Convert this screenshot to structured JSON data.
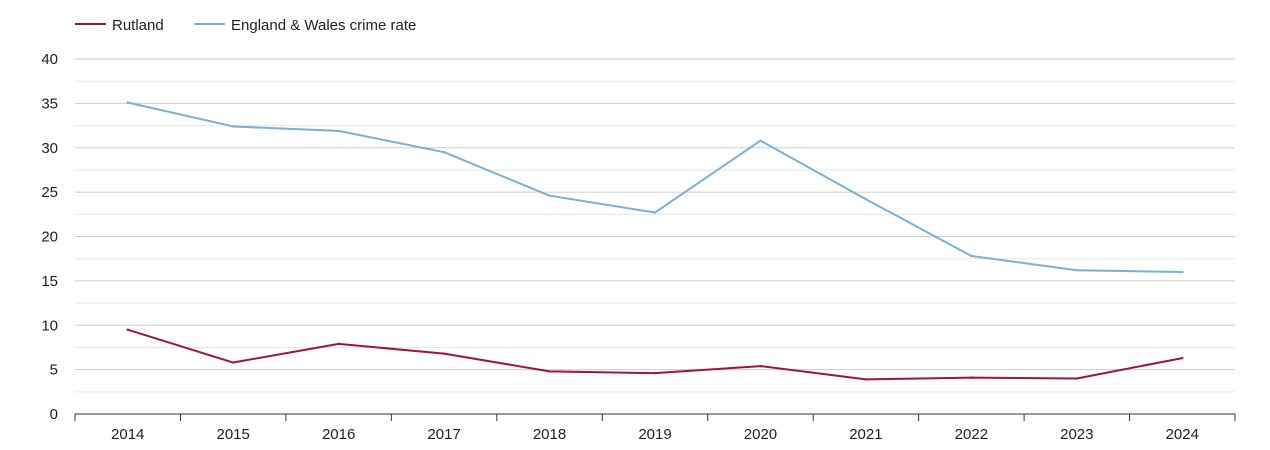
{
  "chart_data": {
    "type": "line",
    "title": "",
    "xlabel": "",
    "ylabel": "",
    "x": [
      "2014",
      "2015",
      "2016",
      "2017",
      "2018",
      "2019",
      "2020",
      "2021",
      "2022",
      "2023",
      "2024"
    ],
    "ylim": [
      0,
      40
    ],
    "yticks": [
      "0",
      "5",
      "10",
      "15",
      "20",
      "25",
      "30",
      "35",
      "40"
    ],
    "grid": true,
    "legend_position": "top-left",
    "series": [
      {
        "name": "Rutland",
        "color": "#a0143c",
        "values": [
          9.5,
          5.8,
          7.9,
          6.8,
          4.8,
          4.6,
          5.4,
          3.9,
          4.1,
          4.0,
          6.3
        ]
      },
      {
        "name": "England & Wales crime rate",
        "color": "#79b0d4",
        "values": [
          35.1,
          32.4,
          31.9,
          29.5,
          24.6,
          22.7,
          30.8,
          24.2,
          17.8,
          16.2,
          16.0
        ]
      }
    ]
  }
}
